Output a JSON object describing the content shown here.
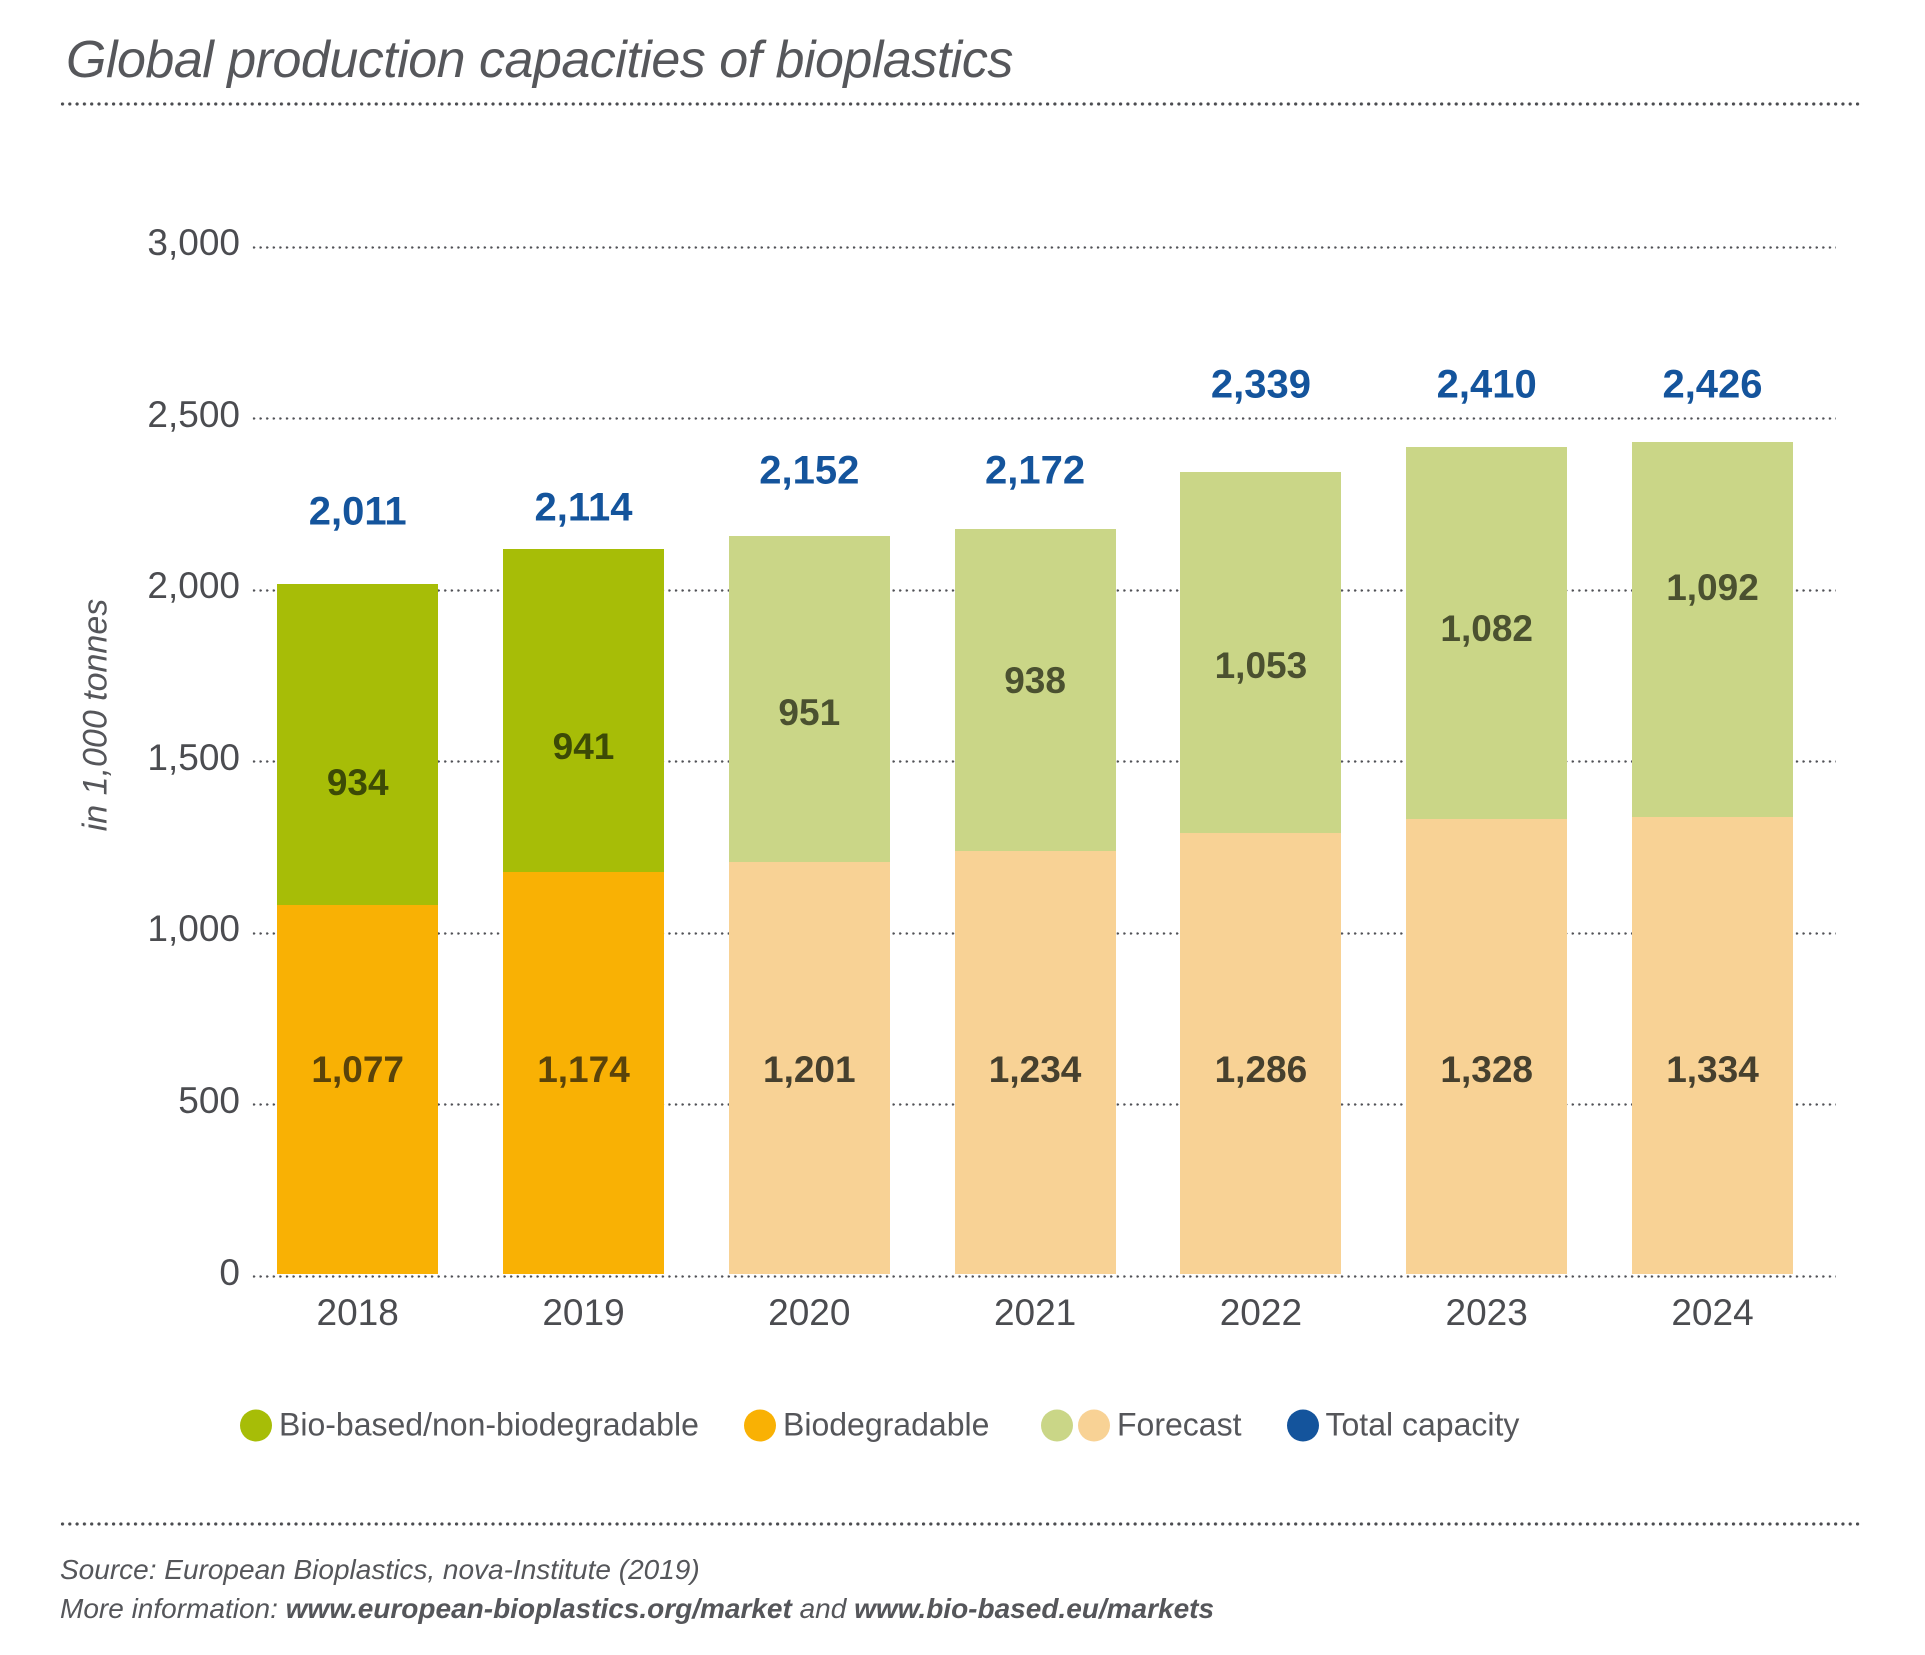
{
  "title": "Global production capacities of bioplastics",
  "chart_data": {
    "type": "bar",
    "stacked": true,
    "title": "Global production capacities of bioplastics",
    "ylabel": "in 1,000 tonnes",
    "ylim": [
      0,
      3000
    ],
    "ytick_step": 500,
    "ytick_labels": [
      "0",
      "500",
      "1,000",
      "1,500",
      "2,000",
      "2,500",
      "3,000"
    ],
    "grid": "dotted horizontal gridlines",
    "legend_position": "bottom",
    "categories": [
      "2018",
      "2019",
      "2020",
      "2021",
      "2022",
      "2023",
      "2024"
    ],
    "series": [
      {
        "name": "Biodegradable",
        "values": [
          1077,
          1174,
          1201,
          1234,
          1286,
          1328,
          1334
        ]
      },
      {
        "name": "Bio-based/non-biodegradable",
        "values": [
          934,
          941,
          951,
          938,
          1053,
          1082,
          1092
        ]
      }
    ],
    "totals": [
      2011,
      2114,
      2152,
      2172,
      2339,
      2410,
      2426
    ],
    "forecast_years": [
      "2020",
      "2021",
      "2022",
      "2023",
      "2024"
    ],
    "value_labels": {
      "biodegradable": [
        "1,077",
        "1,174",
        "1,201",
        "1,234",
        "1,286",
        "1,328",
        "1,334"
      ],
      "bio_based": [
        "934",
        "941",
        "951",
        "938",
        "1,053",
        "1,082",
        "1,092"
      ],
      "totals": [
        "2,011",
        "2,114",
        "2,152",
        "2,172",
        "2,339",
        "2,410",
        "2,426"
      ]
    }
  },
  "colors": {
    "bio_based": "#a7bd07",
    "biodegradable": "#f9b104",
    "bio_based_forecast": "#cad687",
    "biodegradable_forecast": "#f8d295",
    "total": "#14549c",
    "label_on_bio_based": "#3c4a06",
    "label_on_biodegradable": "#5a430a",
    "label_on_bio_based_forecast": "#4b5130",
    "label_on_biodegradable_forecast": "#46402e",
    "text_grey": "#55565a"
  },
  "legend": {
    "items": [
      {
        "label": "Bio-based/non-biodegradable",
        "dots": [
          "#a7bd07"
        ]
      },
      {
        "label": "Biodegradable",
        "dots": [
          "#f9b104"
        ]
      },
      {
        "label": "Forecast",
        "dots": [
          "#cad687",
          "#f8d295"
        ]
      },
      {
        "label": "Total capacity",
        "dots": [
          "#14549c"
        ]
      }
    ]
  },
  "footer": {
    "source_line": "Source: European Bioplastics, nova-Institute (2019)",
    "more_prefix": "More information: ",
    "url1": "www.european-bioplastics.org/market",
    "and_text": " and ",
    "url2": "www.bio-based.eu/markets"
  }
}
